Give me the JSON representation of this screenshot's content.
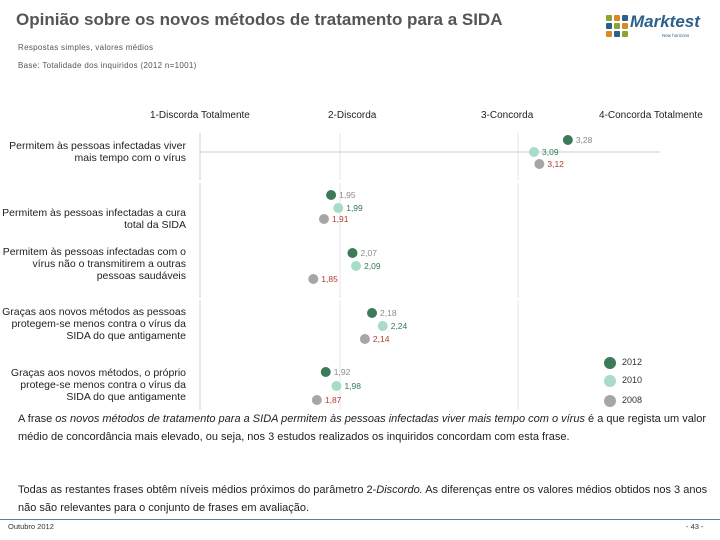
{
  "header": {
    "title": "Opinião sobre os novos métodos de tratamento para a SIDA",
    "subtitle1": "Respostas simples, valores médios",
    "subtitle2": "Base: Totalidade dos inquiridos (2012 n=1001)"
  },
  "logo": {
    "name": "Marktest",
    "tagline": "New horizons"
  },
  "chart_data": {
    "type": "scatter",
    "scale": [
      "1-Discorda Totalmente",
      "2-Discorda",
      "3-Concorda",
      "4-Concorda Totalmente"
    ],
    "xlim": [
      1,
      4
    ],
    "series": [
      {
        "name": "2012",
        "color": "#3d7a5a",
        "values": [
          3.28,
          1.95,
          2.07,
          2.18,
          1.92
        ]
      },
      {
        "name": "2010",
        "color": "#a8dcc6",
        "values": [
          3.09,
          1.99,
          2.09,
          2.24,
          1.98
        ]
      },
      {
        "name": "2008",
        "color": "#a6a6a6",
        "values": [
          3.12,
          1.91,
          1.85,
          2.14,
          1.87
        ]
      }
    ],
    "labels": [
      [
        "3,28",
        "3,09",
        "3,12"
      ],
      [
        "1,95",
        "1,99",
        "1,91"
      ],
      [
        "2,07",
        "2,09",
        "1,85"
      ],
      [
        "2,18",
        "2,24",
        "2,14"
      ],
      [
        "1,92",
        "1,98",
        "1,87"
      ]
    ],
    "label_colors": [
      "#8a8a8a",
      "#2f7a4f",
      "#b23b2e"
    ],
    "categories": [
      "Permitem às pessoas infectadas viver mais tempo com o vírus",
      "Permitem às pessoas infectadas a cura total da SIDA",
      "Permitem às pessoas infectadas com o vírus não o transmitirem a outras pessoas saudáveis",
      "Graças aos novos métodos as pessoas protegem-se menos contra o vírus da SIDA do que antigamente",
      "Graças aos novos métodos, o próprio protege-se menos contra o vírus da SIDA do que antigamente"
    ]
  },
  "notes": {
    "p1_a": "A frase ",
    "p1_em": "os novos métodos de tratamento para a SIDA permitem às pessoas infectadas viver mais tempo com o vírus",
    "p1_b": " é a que regista um valor médio de concordância mais elevado, ou seja, nos 3 estudos realizados os inquiridos concordam com esta frase.",
    "p2_a": "Todas as restantes frases obtêm níveis médios próximos do parâmetro 2-",
    "p2_em": "Discordo.",
    "p2_b": " As diferenças entre os valores médios obtidos nos 3 anos não são relevantes para o conjunto de frases em avaliação."
  },
  "footer": {
    "date": "Outubro 2012",
    "page": "- 43 -"
  }
}
